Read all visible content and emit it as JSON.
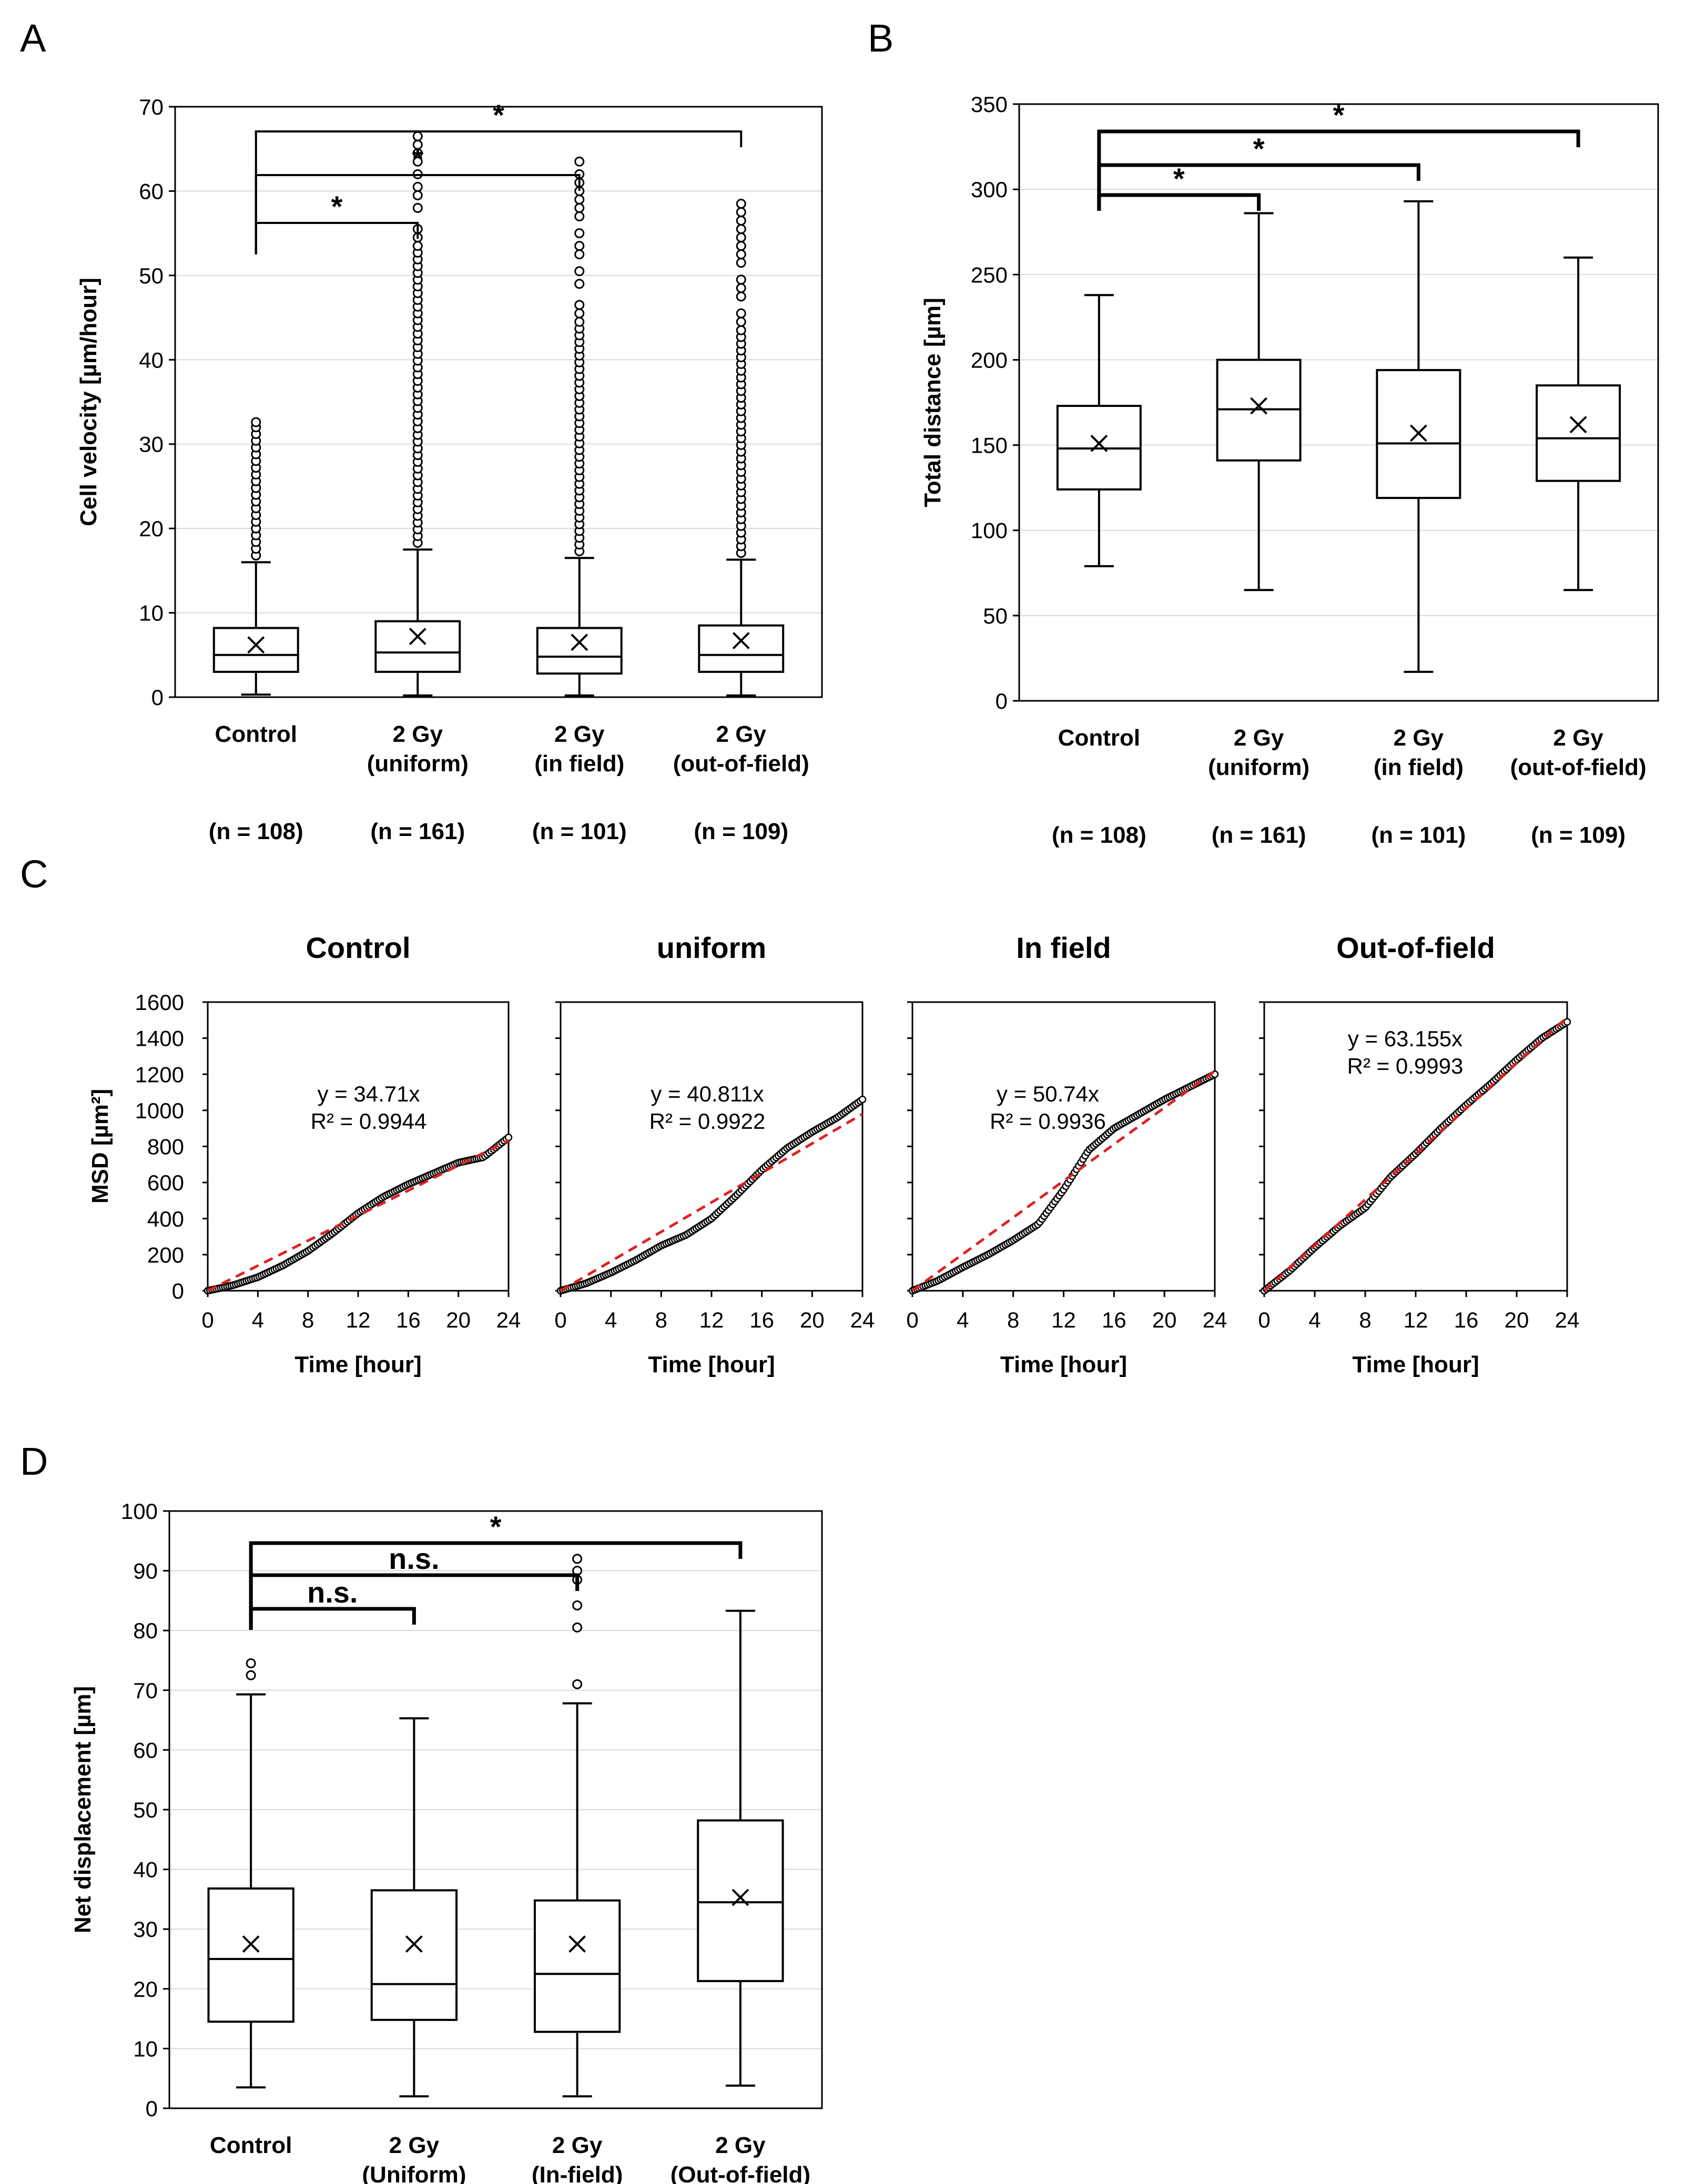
{
  "figure": {
    "panel_labels": [
      "A",
      "B",
      "C",
      "D"
    ]
  },
  "chart_data": [
    {
      "panel": "A",
      "type": "box",
      "ylabel": "Cell velocity [µm/hour]",
      "ylim": [
        0,
        70
      ],
      "yticks": [
        0,
        10,
        20,
        30,
        40,
        50,
        60,
        70
      ],
      "grid": true,
      "categories": [
        [
          "Control"
        ],
        [
          "2 Gy",
          "(uniform)"
        ],
        [
          "2 Gy",
          "(in field)"
        ],
        [
          "2 Gy",
          "(out-of-field)"
        ]
      ],
      "n_labels": [
        "(n = 108)",
        "(n = 161)",
        "(n = 101)",
        "(n = 109)"
      ],
      "boxes": [
        {
          "min": 0.3,
          "q1": 3.0,
          "median": 5.0,
          "q3": 8.2,
          "max": 16.0,
          "mean": 6.2,
          "outliers": [
            16.8,
            17.6,
            18.4,
            19.2,
            20.0,
            20.8,
            21.6,
            22.4,
            23.2,
            24.0,
            24.8,
            25.6,
            26.4,
            27.2,
            28.0,
            28.8,
            29.6,
            30.4,
            31.2,
            32.0,
            32.6
          ]
        },
        {
          "min": 0.2,
          "q1": 3.0,
          "median": 5.3,
          "q3": 9.0,
          "max": 17.5,
          "mean": 7.2,
          "outliers": [
            18.3,
            19.1,
            19.9,
            20.7,
            21.5,
            22.3,
            23.1,
            23.9,
            24.7,
            25.5,
            26.3,
            27.1,
            27.9,
            28.7,
            29.5,
            30.3,
            31.1,
            31.9,
            32.7,
            33.5,
            34.3,
            35.1,
            35.9,
            36.7,
            37.5,
            38.3,
            39.1,
            39.9,
            40.7,
            41.5,
            42.3,
            43.1,
            43.9,
            44.7,
            45.5,
            46.3,
            47.1,
            47.9,
            48.7,
            49.5,
            50.3,
            51.1,
            51.9,
            52.7,
            53.5,
            54.5,
            55.5,
            58.0,
            59.5,
            60.5,
            62.0,
            63.5,
            64.5,
            65.5,
            66.5
          ]
        },
        {
          "min": 0.2,
          "q1": 2.8,
          "median": 4.8,
          "q3": 8.2,
          "max": 16.5,
          "mean": 6.5,
          "outliers": [
            17.3,
            18.1,
            18.9,
            19.7,
            20.5,
            21.3,
            22.1,
            22.9,
            23.7,
            24.5,
            25.3,
            26.1,
            26.9,
            27.7,
            28.5,
            29.3,
            30.1,
            30.9,
            31.7,
            32.5,
            33.3,
            34.1,
            34.9,
            35.7,
            36.5,
            37.3,
            38.1,
            38.9,
            39.7,
            40.5,
            41.3,
            42.1,
            42.9,
            43.7,
            44.5,
            45.5,
            46.5,
            49.0,
            50.5,
            52.5,
            53.5,
            55.0,
            57.0,
            58.0,
            59.0,
            60.0,
            61.0,
            62.0,
            63.5
          ]
        },
        {
          "min": 0.2,
          "q1": 3.0,
          "median": 5.0,
          "q3": 8.5,
          "max": 16.3,
          "mean": 6.7,
          "outliers": [
            17.1,
            17.9,
            18.7,
            19.5,
            20.3,
            21.1,
            21.9,
            22.7,
            23.5,
            24.3,
            25.1,
            25.9,
            26.7,
            27.5,
            28.3,
            29.1,
            29.9,
            30.7,
            31.5,
            32.3,
            33.1,
            33.9,
            34.7,
            35.5,
            36.3,
            37.1,
            37.9,
            38.7,
            39.5,
            40.3,
            41.1,
            41.9,
            42.7,
            43.5,
            44.5,
            45.5,
            47.5,
            48.5,
            49.5,
            51.5,
            52.5,
            53.5,
            54.5,
            55.5,
            56.5,
            57.5,
            58.5
          ]
        }
      ],
      "significance": [
        {
          "from": 0,
          "to": 1,
          "label": "*"
        },
        {
          "from": 0,
          "to": 2,
          "label": "*"
        },
        {
          "from": 0,
          "to": 3,
          "label": "*"
        }
      ]
    },
    {
      "panel": "B",
      "type": "box",
      "ylabel": "Total distance [µm]",
      "ylim": [
        0,
        350
      ],
      "yticks": [
        0,
        50,
        100,
        150,
        200,
        250,
        300,
        350
      ],
      "grid": true,
      "categories": [
        [
          "Control"
        ],
        [
          "2 Gy",
          "(uniform)"
        ],
        [
          "2 Gy",
          "(in field)"
        ],
        [
          "2 Gy",
          "(out-of-field)"
        ]
      ],
      "n_labels": [
        "(n = 108)",
        "(n = 161)",
        "(n = 101)",
        "(n = 109)"
      ],
      "boxes": [
        {
          "min": 79,
          "q1": 124,
          "median": 148,
          "q3": 173,
          "max": 238,
          "mean": 151,
          "outliers": []
        },
        {
          "min": 65,
          "q1": 141,
          "median": 171,
          "q3": 200,
          "max": 286,
          "mean": 173,
          "outliers": []
        },
        {
          "min": 17,
          "q1": 119,
          "median": 151,
          "q3": 194,
          "max": 293,
          "mean": 157,
          "outliers": []
        },
        {
          "min": 65,
          "q1": 129,
          "median": 154,
          "q3": 185,
          "max": 260,
          "mean": 162,
          "outliers": []
        }
      ],
      "significance": [
        {
          "from": 0,
          "to": 1,
          "label": "*"
        },
        {
          "from": 0,
          "to": 2,
          "label": "*"
        },
        {
          "from": 0,
          "to": 3,
          "label": "*"
        }
      ]
    },
    {
      "panel": "C",
      "type": "scatter",
      "ylabel": "MSD [µm²]",
      "xlabel": "Time [hour]",
      "xlim": [
        0,
        24
      ],
      "ylim": [
        0,
        1600
      ],
      "xticks": [
        0,
        4,
        8,
        12,
        16,
        20,
        24
      ],
      "yticks": [
        0,
        200,
        400,
        600,
        800,
        1000,
        1200,
        1400,
        1600
      ],
      "grid": false,
      "subplots": [
        {
          "title": "Control",
          "equation": "y = 34.71x",
          "r2": "R² = 0.9944",
          "slope": 34.71,
          "curve": [
            [
              0,
              0
            ],
            [
              2,
              30
            ],
            [
              4,
              75
            ],
            [
              6,
              140
            ],
            [
              8,
              220
            ],
            [
              10,
              320
            ],
            [
              12,
              430
            ],
            [
              14,
              520
            ],
            [
              16,
              590
            ],
            [
              18,
              650
            ],
            [
              20,
              710
            ],
            [
              22,
              740
            ],
            [
              24,
              850
            ]
          ]
        },
        {
          "title": "uniform",
          "equation": "y = 40.811x",
          "r2": "R² = 0.9922",
          "slope": 40.811,
          "curve": [
            [
              0,
              0
            ],
            [
              2,
              40
            ],
            [
              4,
              100
            ],
            [
              6,
              170
            ],
            [
              8,
              250
            ],
            [
              10,
              310
            ],
            [
              12,
              400
            ],
            [
              14,
              530
            ],
            [
              16,
              670
            ],
            [
              18,
              790
            ],
            [
              20,
              880
            ],
            [
              22,
              960
            ],
            [
              24,
              1060
            ]
          ]
        },
        {
          "title": "In field",
          "equation": "y = 50.74x",
          "r2": "R² = 0.9936",
          "slope": 50.74,
          "curve": [
            [
              0,
              0
            ],
            [
              2,
              55
            ],
            [
              4,
              130
            ],
            [
              6,
              200
            ],
            [
              8,
              280
            ],
            [
              10,
              370
            ],
            [
              12,
              560
            ],
            [
              14,
              780
            ],
            [
              16,
              900
            ],
            [
              18,
              980
            ],
            [
              20,
              1060
            ],
            [
              22,
              1130
            ],
            [
              24,
              1200
            ]
          ]
        },
        {
          "title": "Out-of-field",
          "equation": "y = 63.155x",
          "r2": "R² = 0.9993",
          "slope": 63.155,
          "curve": [
            [
              0,
              0
            ],
            [
              2,
              110
            ],
            [
              4,
              240
            ],
            [
              6,
              360
            ],
            [
              8,
              460
            ],
            [
              10,
              630
            ],
            [
              12,
              760
            ],
            [
              14,
              900
            ],
            [
              16,
              1030
            ],
            [
              18,
              1150
            ],
            [
              20,
              1280
            ],
            [
              22,
              1400
            ],
            [
              24,
              1490
            ]
          ]
        }
      ]
    },
    {
      "panel": "D",
      "type": "box",
      "ylabel": "Net displacement [µm]",
      "ylim": [
        0,
        100
      ],
      "yticks": [
        0,
        10,
        20,
        30,
        40,
        50,
        60,
        70,
        80,
        90,
        100
      ],
      "grid": true,
      "categories": [
        [
          "Control"
        ],
        [
          "2 Gy",
          "(Uniform)"
        ],
        [
          "2 Gy",
          "(In-field)"
        ],
        [
          "2 Gy",
          "(Out-of-field)"
        ]
      ],
      "n_labels": [],
      "boxes": [
        {
          "min": 3.5,
          "q1": 14.5,
          "median": 25.0,
          "q3": 36.8,
          "max": 69.3,
          "mean": 27.5,
          "outliers": [
            72.5,
            74.5
          ]
        },
        {
          "min": 2.0,
          "q1": 14.8,
          "median": 20.8,
          "q3": 36.5,
          "max": 65.3,
          "mean": 27.5,
          "outliers": []
        },
        {
          "min": 2.0,
          "q1": 12.8,
          "median": 22.5,
          "q3": 34.8,
          "max": 67.8,
          "mean": 27.5,
          "outliers": [
            71.0,
            80.5,
            84.2,
            88.5,
            90.0,
            92.0
          ]
        },
        {
          "min": 3.8,
          "q1": 21.3,
          "median": 34.5,
          "q3": 48.2,
          "max": 83.3,
          "mean": 35.3,
          "outliers": []
        }
      ],
      "significance": [
        {
          "from": 0,
          "to": 1,
          "label": "n.s."
        },
        {
          "from": 0,
          "to": 2,
          "label": "n.s."
        },
        {
          "from": 0,
          "to": 3,
          "label": "*"
        }
      ]
    }
  ]
}
